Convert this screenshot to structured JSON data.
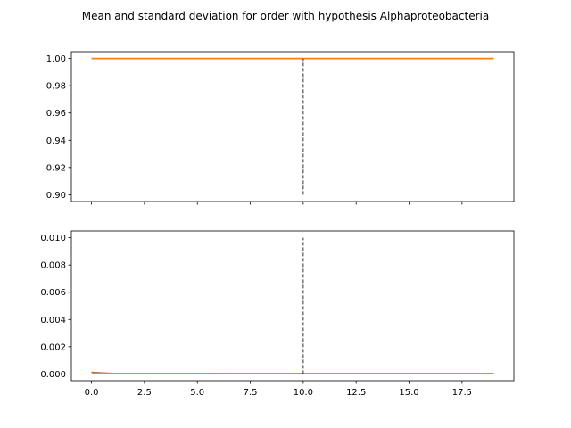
{
  "title": "Mean and standard deviation for order with hypothesis Alphaproteobacteria",
  "colors": {
    "blue": "#1f77b4",
    "orange": "#ff7f0e",
    "vline": "#333333"
  },
  "chart_data": [
    {
      "type": "line",
      "panel": "mean",
      "xlim": [
        -0.95,
        19.95
      ],
      "ylim": [
        0.895,
        1.005
      ],
      "grid": false,
      "yticks": [
        0.9,
        0.92,
        0.94,
        0.96,
        0.98,
        1.0
      ],
      "ytick_labels": [
        "0.90",
        "0.92",
        "0.94",
        "0.96",
        "0.98",
        "1.00"
      ],
      "xticks": [
        0,
        2.5,
        5,
        7.5,
        10,
        12.5,
        15,
        17.5
      ],
      "xtick_labels": [
        "",
        "",
        "",
        "",
        "",
        "",
        "",
        ""
      ],
      "vline": {
        "x": 10,
        "y": [
          0.9,
          1.0
        ],
        "style": "dashed"
      },
      "x": [
        0,
        1,
        2,
        3,
        4,
        5,
        6,
        7,
        8,
        9,
        10,
        11,
        12,
        13,
        14,
        15,
        16,
        17,
        18,
        19
      ],
      "series": [
        {
          "color": "#1f77b4",
          "values": [
            1,
            1,
            1,
            1,
            1,
            1,
            1,
            1,
            1,
            1,
            1,
            1,
            1,
            1,
            1,
            1,
            1,
            1,
            1,
            1
          ]
        },
        {
          "color": "#ff7f0e",
          "values": [
            1,
            1,
            1,
            1,
            1,
            1,
            1,
            1,
            1,
            1,
            1,
            1,
            1,
            1,
            1,
            1,
            1,
            1,
            1,
            1
          ]
        }
      ]
    },
    {
      "type": "line",
      "panel": "std",
      "xlim": [
        -0.95,
        19.95
      ],
      "ylim": [
        -0.0005,
        0.0105
      ],
      "grid": false,
      "yticks": [
        0,
        0.002,
        0.004,
        0.006,
        0.008,
        0.01
      ],
      "ytick_labels": [
        "0.000",
        "0.002",
        "0.004",
        "0.006",
        "0.008",
        "0.010"
      ],
      "xticks": [
        0,
        2.5,
        5,
        7.5,
        10,
        12.5,
        15,
        17.5
      ],
      "xtick_labels": [
        "0.0",
        "2.5",
        "5.0",
        "7.5",
        "10.0",
        "12.5",
        "15.0",
        "17.5"
      ],
      "vline": {
        "x": 10,
        "y": [
          0,
          0.01
        ],
        "style": "dashed"
      },
      "x": [
        0,
        1,
        2,
        3,
        4,
        5,
        6,
        7,
        8,
        9,
        10,
        11,
        12,
        13,
        14,
        15,
        16,
        17,
        18,
        19
      ],
      "series": [
        {
          "color": "#1f77b4",
          "values": [
            0.00012,
            3e-05,
            3e-05,
            3e-05,
            3e-05,
            3e-05,
            3e-05,
            2e-05,
            2e-05,
            2e-05,
            2e-05,
            2e-05,
            2e-05,
            2e-05,
            2e-05,
            2e-05,
            2e-05,
            2e-05,
            2e-05,
            2e-05
          ]
        },
        {
          "color": "#ff7f0e",
          "values": [
            8e-05,
            4e-05,
            4e-05,
            4e-05,
            4e-05,
            4e-05,
            3e-05,
            3e-05,
            3e-05,
            3e-05,
            3e-05,
            3e-05,
            3e-05,
            3e-05,
            3e-05,
            3e-05,
            3e-05,
            3e-05,
            3e-05,
            3e-05
          ]
        }
      ]
    }
  ]
}
